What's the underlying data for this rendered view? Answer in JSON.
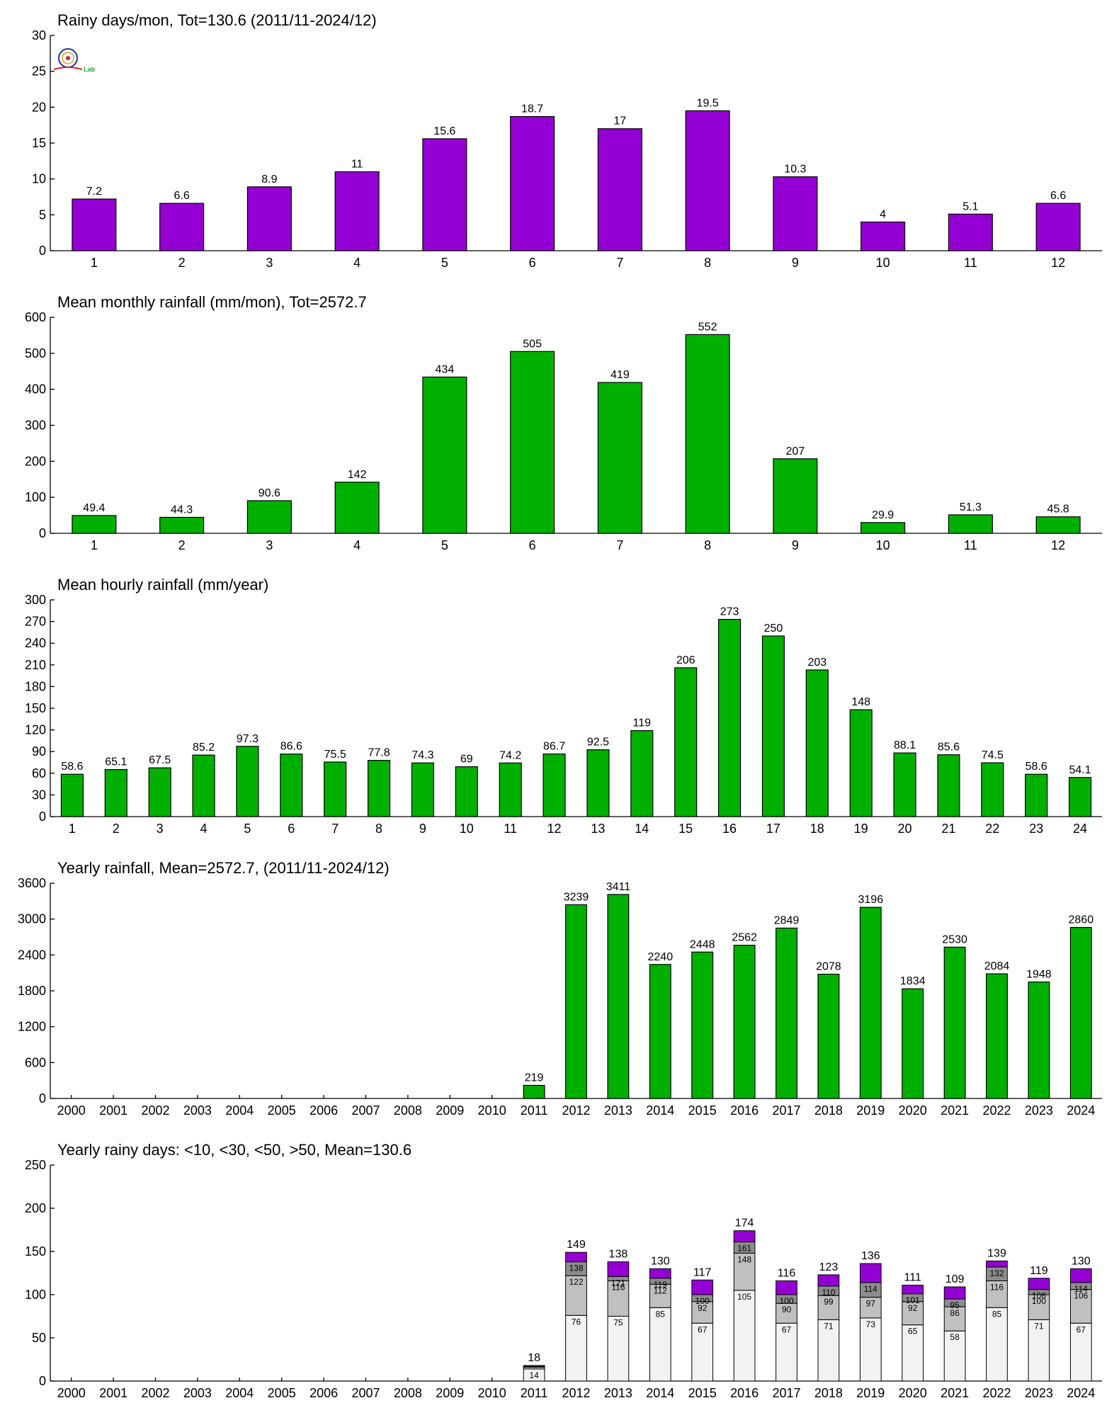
{
  "logo": {
    "label": "Lab",
    "colors": {
      "ring": "#1a3a9c",
      "accent": "#e02020",
      "lab": "#2aa02a",
      "gold": "#d4a017"
    }
  },
  "chart_data": [
    {
      "type": "bar",
      "title": "Rainy days/mon, Tot=130.6 (2011/11-2024/12)",
      "categories": [
        "1",
        "2",
        "3",
        "4",
        "5",
        "6",
        "7",
        "8",
        "9",
        "10",
        "11",
        "12"
      ],
      "values": [
        7.2,
        6.6,
        8.9,
        11,
        15.6,
        18.7,
        17,
        19.5,
        10.3,
        4,
        5.1,
        6.6
      ],
      "value_labels": [
        "7.2",
        "6.6",
        "8.9",
        "11",
        "15.6",
        "18.7",
        "17",
        "19.5",
        "10.3",
        "4",
        "5.1",
        "6.6"
      ],
      "ylim": [
        0,
        30
      ],
      "yticks": [
        0,
        5,
        10,
        15,
        20,
        25,
        30
      ],
      "color": "#9400d3"
    },
    {
      "type": "bar",
      "title": "Mean monthly rainfall (mm/mon), Tot=2572.7",
      "categories": [
        "1",
        "2",
        "3",
        "4",
        "5",
        "6",
        "7",
        "8",
        "9",
        "10",
        "11",
        "12"
      ],
      "values": [
        49.4,
        44.3,
        90.6,
        142,
        434,
        505,
        419,
        552,
        207,
        29.9,
        51.3,
        45.8
      ],
      "value_labels": [
        "49.4",
        "44.3",
        "90.6",
        "142",
        "434",
        "505",
        "419",
        "552",
        "207",
        "29.9",
        "51.3",
        "45.8"
      ],
      "ylim": [
        0,
        600
      ],
      "yticks": [
        0,
        100,
        200,
        300,
        400,
        500,
        600
      ],
      "color": "#00b000"
    },
    {
      "type": "bar",
      "title": "Mean hourly rainfall (mm/year)",
      "categories": [
        "1",
        "2",
        "3",
        "4",
        "5",
        "6",
        "7",
        "8",
        "9",
        "10",
        "11",
        "12",
        "13",
        "14",
        "15",
        "16",
        "17",
        "18",
        "19",
        "20",
        "21",
        "22",
        "23",
        "24"
      ],
      "values": [
        58.6,
        65.1,
        67.5,
        85.2,
        97.3,
        86.6,
        75.5,
        77.8,
        74.3,
        69,
        74.2,
        86.7,
        92.5,
        119,
        206,
        273,
        250,
        203,
        148,
        88.1,
        85.6,
        74.5,
        58.6,
        54.1
      ],
      "value_labels": [
        "58.6",
        "65.1",
        "67.5",
        "85.2",
        "97.3",
        "86.6",
        "75.5",
        "77.8",
        "74.3",
        "69",
        "74.2",
        "86.7",
        "92.5",
        "119",
        "206",
        "273",
        "250",
        "203",
        "148",
        "88.1",
        "85.6",
        "74.5",
        "58.6",
        "54.1"
      ],
      "ylim": [
        0,
        300
      ],
      "yticks": [
        0,
        30,
        60,
        90,
        120,
        150,
        180,
        210,
        240,
        270,
        300
      ],
      "color": "#00b000"
    },
    {
      "type": "bar",
      "title": "Yearly rainfall, Mean=2572.7, (2011/11-2024/12)",
      "categories": [
        "2000",
        "2001",
        "2002",
        "2003",
        "2004",
        "2005",
        "2006",
        "2007",
        "2008",
        "2009",
        "2010",
        "2011",
        "2012",
        "2013",
        "2014",
        "2015",
        "2016",
        "2017",
        "2018",
        "2019",
        "2020",
        "2021",
        "2022",
        "2023",
        "2024"
      ],
      "values": [
        null,
        null,
        null,
        null,
        null,
        null,
        null,
        null,
        null,
        null,
        null,
        219,
        3239,
        3411,
        2240,
        2448,
        2562,
        2849,
        2078,
        3196,
        1834,
        2530,
        2084,
        1948,
        2860
      ],
      "value_labels": [
        "",
        "",
        "",
        "",
        "",
        "",
        "",
        "",
        "",
        "",
        "",
        "219",
        "3239",
        "3411",
        "2240",
        "2448",
        "2562",
        "2849",
        "2078",
        "3196",
        "1834",
        "2530",
        "2084",
        "1948",
        "2860"
      ],
      "ylim": [
        0,
        3600
      ],
      "yticks": [
        0,
        600,
        1200,
        1800,
        2400,
        3000,
        3600
      ],
      "color": "#00b000"
    },
    {
      "type": "stacked-bar",
      "title": "Yearly rainy days: <10, <30, <50, >50, Mean=130.6",
      "categories": [
        "2000",
        "2001",
        "2002",
        "2003",
        "2004",
        "2005",
        "2006",
        "2007",
        "2008",
        "2009",
        "2010",
        "2011",
        "2012",
        "2013",
        "2014",
        "2015",
        "2016",
        "2017",
        "2018",
        "2019",
        "2020",
        "2021",
        "2022",
        "2023",
        "2024"
      ],
      "ylim": [
        0,
        250
      ],
      "yticks": [
        0,
        50,
        100,
        150,
        200,
        250
      ],
      "colors": [
        "#f2f2f2",
        "#c0c0c0",
        "#8c8c8c",
        "#9400d3"
      ],
      "cumulative": [
        null,
        null,
        null,
        null,
        null,
        null,
        null,
        null,
        null,
        null,
        null,
        [
          14,
          16,
          17,
          18
        ],
        [
          76,
          122,
          138,
          149
        ],
        [
          75,
          116,
          121,
          138
        ],
        [
          85,
          112,
          119,
          130
        ],
        [
          67,
          92,
          100,
          117
        ],
        [
          105,
          148,
          161,
          174
        ],
        [
          67,
          90,
          100,
          116
        ],
        [
          71,
          99,
          110,
          123
        ],
        [
          73,
          97,
          114,
          136
        ],
        [
          65,
          92,
          101,
          111
        ],
        [
          58,
          86,
          95,
          109
        ],
        [
          85,
          116,
          132,
          139
        ],
        [
          71,
          100,
          106,
          119
        ],
        [
          67,
          106,
          114,
          130
        ]
      ],
      "segment_labels": [
        null,
        null,
        null,
        null,
        null,
        null,
        null,
        null,
        null,
        null,
        null,
        [
          "14",
          "",
          "",
          ""
        ],
        [
          "76",
          "122",
          "138",
          ""
        ],
        [
          "75",
          "116",
          "121",
          ""
        ],
        [
          "85",
          "112",
          "119",
          ""
        ],
        [
          "67",
          "92",
          "100",
          ""
        ],
        [
          "105",
          "148",
          "161",
          ""
        ],
        [
          "67",
          "90",
          "100",
          ""
        ],
        [
          "71",
          "99",
          "110",
          ""
        ],
        [
          "73",
          "97",
          "114",
          ""
        ],
        [
          "65",
          "92",
          "101",
          ""
        ],
        [
          "58",
          "86",
          "95",
          ""
        ],
        [
          "85",
          "116",
          "132",
          ""
        ],
        [
          "71",
          "100",
          "106",
          ""
        ],
        [
          "67",
          "106",
          "114",
          ""
        ]
      ],
      "total_labels": [
        "",
        "",
        "",
        "",
        "",
        "",
        "",
        "",
        "",
        "",
        "",
        "18",
        "149",
        "138",
        "130",
        "117",
        "174",
        "116",
        "123",
        "136",
        "111",
        "109",
        "139",
        "119",
        "130"
      ]
    }
  ]
}
